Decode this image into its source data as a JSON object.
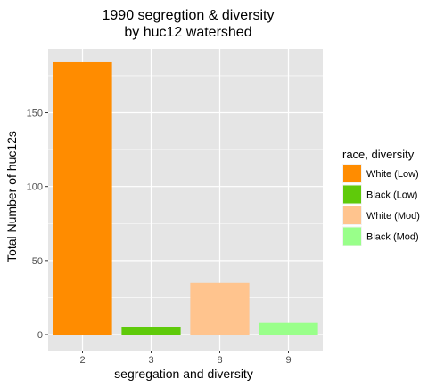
{
  "chart_data": {
    "type": "bar",
    "title": [
      "1990 segregtion & diversity",
      "by huc12 watershed"
    ],
    "xlabel": "segregation and diversity",
    "ylabel": "Total Number of huc12s",
    "categories": [
      "2",
      "3",
      "8",
      "9"
    ],
    "values": [
      184,
      5,
      35,
      8
    ],
    "bar_colors": [
      "#ff8c00",
      "#5fca0a",
      "#ffc48e",
      "#99ff8a"
    ],
    "ylim": [
      0,
      193
    ],
    "yticks": [
      0,
      50,
      100,
      150
    ],
    "grid": true,
    "legend": {
      "title": "race, diversity",
      "placement": "right",
      "entries": [
        {
          "label": "White (Low)",
          "color": "#ff8c00"
        },
        {
          "label": "Black (Low)",
          "color": "#5fca0a"
        },
        {
          "label": "White (Mod)",
          "color": "#ffc48e"
        },
        {
          "label": "Black (Mod)",
          "color": "#99ff8a"
        }
      ]
    },
    "panel_color": "#e5e5e5",
    "grid_color": "#ffffff"
  }
}
